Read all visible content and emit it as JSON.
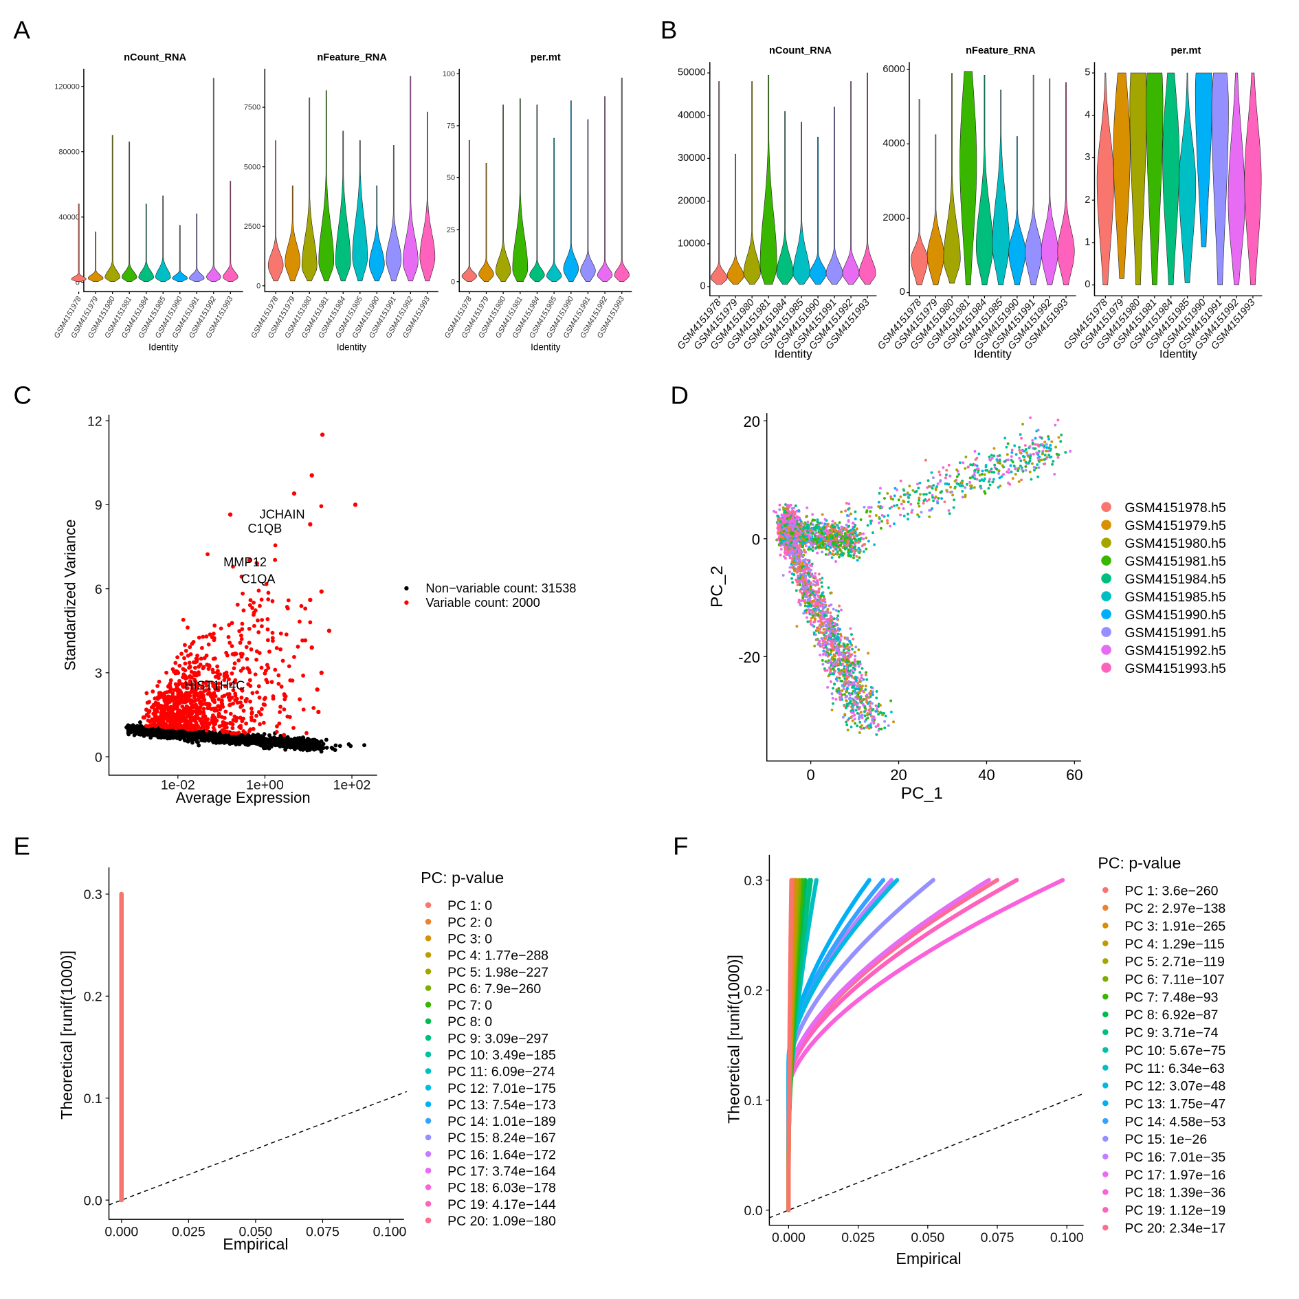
{
  "panel_labels": [
    "A",
    "B",
    "C",
    "D",
    "E",
    "F"
  ],
  "samples": [
    "GSM4151978",
    "GSM4151979",
    "GSM4151980",
    "GSM4151981",
    "GSM4151984",
    "GSM4151985",
    "GSM4151990",
    "GSM4151991",
    "GSM4151992",
    "GSM4151993"
  ],
  "sample_colors": [
    "#F8766D",
    "#D89000",
    "#A3A500",
    "#39B600",
    "#00BF7D",
    "#00BFC4",
    "#00B0F6",
    "#9590FF",
    "#E76BF3",
    "#FF62BC"
  ],
  "chart_data": [
    {
      "id": "A",
      "type": "violin",
      "xlabel": "Identity",
      "facets": [
        {
          "title": "nCount_RNA",
          "ticks": [
            0,
            40000,
            80000,
            120000
          ],
          "ylim": [
            -4000,
            133000
          ],
          "min": [
            500,
            500,
            500,
            500,
            500,
            500,
            500,
            500,
            500,
            500
          ],
          "mode": [
            2000,
            2500,
            3000,
            3000,
            3000,
            3000,
            2500,
            2500,
            3000,
            3000
          ],
          "spread": [
            1500,
            2000,
            4000,
            3500,
            4000,
            5000,
            2000,
            2500,
            3000,
            3500
          ],
          "max": [
            48000,
            31000,
            90000,
            86000,
            48000,
            53000,
            35000,
            42000,
            125000,
            62000
          ]
        },
        {
          "title": "nFeature_RNA",
          "ticks": [
            0,
            2500,
            5000,
            7500
          ],
          "ylim": [
            -300,
            9000
          ],
          "min": [
            200,
            200,
            200,
            200,
            200,
            200,
            200,
            200,
            200,
            200
          ],
          "mode": [
            850,
            1000,
            800,
            1000,
            1000,
            1200,
            900,
            1100,
            1000,
            1200
          ],
          "spread": [
            500,
            700,
            1200,
            1500,
            1500,
            1500,
            700,
            800,
            1000,
            1000
          ],
          "max": [
            6100,
            4200,
            7900,
            8200,
            6500,
            6100,
            4200,
            5900,
            8800,
            7300
          ]
        },
        {
          "title": "per.mt",
          "ticks": [
            0,
            25,
            50,
            75,
            100
          ],
          "ylim": [
            -4,
            102
          ],
          "min": [
            0,
            0,
            0,
            0,
            0,
            0,
            0,
            0,
            0,
            0
          ],
          "mode": [
            2.5,
            3.5,
            5,
            6,
            3,
            2.5,
            6,
            5,
            3,
            3
          ],
          "spread": [
            2,
            3,
            6,
            15,
            3,
            3,
            5,
            4,
            3,
            3
          ],
          "max": [
            68,
            57,
            85,
            88,
            85,
            69,
            87,
            78,
            89,
            98
          ]
        }
      ]
    },
    {
      "id": "B",
      "type": "violin",
      "xlabel": "Identity",
      "facets": [
        {
          "title": "nCount_RNA",
          "ticks": [
            0,
            10000,
            20000,
            30000,
            40000,
            50000
          ],
          "ylim": [
            -2000,
            52500
          ],
          "min": [
            500,
            500,
            500,
            500,
            500,
            500,
            500,
            500,
            500,
            500
          ],
          "mode": [
            2000,
            2500,
            3000,
            5000,
            3000,
            3000,
            3000,
            3000,
            3000,
            3000
          ],
          "spread": [
            1500,
            2000,
            4000,
            12000,
            4000,
            5000,
            2000,
            2500,
            2500,
            3000
          ],
          "max": [
            48000,
            31000,
            48000,
            49500,
            41000,
            38500,
            35000,
            42000,
            48000,
            50000
          ]
        },
        {
          "title": "nFeature_RNA",
          "ticks": [
            0,
            2000,
            4000,
            6000
          ],
          "ylim": [
            -100,
            6200
          ],
          "min": [
            200,
            200,
            250,
            200,
            200,
            200,
            200,
            200,
            200,
            200
          ],
          "mode": [
            900,
            1000,
            900,
            3500,
            1200,
            1300,
            1100,
            1100,
            1100,
            1100
          ],
          "spread": [
            300,
            500,
            900,
            2000,
            1100,
            1200,
            450,
            500,
            600,
            600
          ],
          "max": [
            5200,
            4250,
            5900,
            5950,
            5850,
            5450,
            4200,
            5850,
            5750,
            5650
          ]
        },
        {
          "title": "per.mt",
          "ticks": [
            0,
            1,
            2,
            3,
            4,
            5
          ],
          "ylim": [
            -0.1,
            5.3
          ],
          "min": [
            0,
            0.15,
            0,
            0,
            0,
            0.05,
            0.9,
            0,
            0,
            0
          ],
          "mode": [
            2.5,
            3.2,
            4.3,
            4.3,
            3.0,
            2.4,
            4.6,
            4.2,
            2.0,
            2.5
          ],
          "spread": [
            1.0,
            1.5,
            1.5,
            1.5,
            1.5,
            1.0,
            1.0,
            1.2,
            1.5,
            1.3
          ],
          "max": [
            5,
            5,
            5,
            5,
            5,
            5,
            5,
            5,
            5,
            5
          ]
        }
      ]
    },
    {
      "id": "C",
      "type": "scatter",
      "xlabel": "Average Expression",
      "ylabel": "Standardized Variance",
      "x_scale": "log10",
      "xlim": [
        0.00026,
        380
      ],
      "ylim": [
        -0.5,
        12.2
      ],
      "xticks": [
        "1e-02",
        "1e+00",
        "1e+02"
      ],
      "xtick_values": [
        0.01,
        1,
        100
      ],
      "yticks": [
        0,
        3,
        6,
        9,
        12
      ],
      "legend": [
        {
          "label": "Non−variable count: 31538",
          "color": "#000000"
        },
        {
          "label": "Variable count: 2000",
          "color": "#FF0000"
        }
      ],
      "labeled_genes": [
        {
          "gene": "JCHAIN",
          "x": 2.5,
          "y": 8.5
        },
        {
          "gene": "C1QB",
          "x": 1.0,
          "y": 8.0
        },
        {
          "gene": "MMP12",
          "x": 0.35,
          "y": 6.8
        },
        {
          "gene": "C1QA",
          "x": 0.7,
          "y": 6.2
        },
        {
          "gene": "HIST1H4C",
          "x": 0.07,
          "y": 2.4
        }
      ],
      "top_variable_points": [
        [
          21,
          11.5
        ],
        [
          12,
          10.05
        ],
        [
          4.7,
          9.4
        ],
        [
          120,
          9.0
        ],
        [
          0.16,
          8.65
        ],
        [
          11,
          8.3
        ],
        [
          20,
          5.9
        ],
        [
          11,
          5.6
        ],
        [
          30,
          4.5
        ],
        [
          12,
          3.9
        ],
        [
          20,
          3.0
        ],
        [
          16,
          2.4
        ],
        [
          17,
          1.6
        ]
      ]
    },
    {
      "id": "D",
      "type": "scatter",
      "xlabel": "PC_1",
      "ylabel": "PC_2",
      "xlim": [
        -10,
        61.5
      ],
      "ylim": [
        -37.7,
        21.3
      ],
      "xticks": [
        0,
        20,
        40,
        60
      ],
      "yticks": [
        -20,
        0,
        20
      ],
      "legend": [
        "GSM4151978.h5",
        "GSM4151979.h5",
        "GSM4151980.h5",
        "GSM4151981.h5",
        "GSM4151984.h5",
        "GSM4151985.h5",
        "GSM4151990.h5",
        "GSM4151991.h5",
        "GSM4151992.h5",
        "GSM4151993.h5"
      ]
    },
    {
      "id": "E",
      "type": "scatter",
      "title_legend": "PC: p-value",
      "xlabel": "Empirical",
      "ylabel": "Theoretical [runif(1000)]",
      "xlim": [
        -0.0047,
        0.1064
      ],
      "ylim": [
        -0.019,
        0.327
      ],
      "xticks": [
        "0.000",
        "0.025",
        "0.050",
        "0.075",
        "0.100"
      ],
      "yticks": [
        "0.0",
        "0.1",
        "0.2",
        "0.3"
      ],
      "legend": [
        "PC 1: 0",
        "PC 2: 0",
        "PC 3: 0",
        "PC 4: 1.77e−288",
        "PC 5: 1.98e−227",
        "PC 6: 7.9e−260",
        "PC 7: 0",
        "PC 8: 0",
        "PC 9: 3.09e−297",
        "PC 10: 3.49e−185",
        "PC 11: 6.09e−274",
        "PC 12: 7.01e−175",
        "PC 13: 7.54e−173",
        "PC 14: 1.01e−189",
        "PC 15: 8.24e−167",
        "PC 16: 1.64e−172",
        "PC 17: 3.74e−164",
        "PC 18: 6.03e−178",
        "PC 19: 4.17e−144",
        "PC 20: 1.09e−180"
      ],
      "max_empirical": [
        0,
        0,
        0,
        0,
        0,
        0,
        0,
        0,
        0,
        0,
        0,
        0,
        0,
        0,
        0,
        0,
        0,
        0,
        0,
        0
      ]
    },
    {
      "id": "F",
      "type": "scatter",
      "title_legend": "PC: p-value",
      "xlabel": "Empirical",
      "ylabel": "Theoretical [runif(1000)]",
      "xlim": [
        -0.007,
        0.106
      ],
      "ylim": [
        -0.014,
        0.322
      ],
      "xticks": [
        "0.000",
        "0.025",
        "0.050",
        "0.075",
        "0.100"
      ],
      "yticks": [
        "0.0",
        "0.1",
        "0.2",
        "0.3"
      ],
      "legend": [
        "PC 1: 3.6e−260",
        "PC 2: 2.97e−138",
        "PC 3: 1.91e−265",
        "PC 4: 1.29e−115",
        "PC 5: 2.71e−119",
        "PC 6: 7.11e−107",
        "PC 7: 7.48e−93",
        "PC 8: 6.92e−87",
        "PC 9: 3.71e−74",
        "PC 10: 5.67e−75",
        "PC 11: 6.34e−63",
        "PC 12: 3.07e−48",
        "PC 13: 1.75e−47",
        "PC 14: 4.58e−53",
        "PC 15: 1e−26",
        "PC 16: 7.01e−35",
        "PC 17: 1.97e−16",
        "PC 18: 1.39e−36",
        "PC 19: 1.12e−19",
        "PC 20: 2.34e−17"
      ],
      "max_empirical": [
        0.001,
        0.0015,
        0.002,
        0.003,
        0.0025,
        0.004,
        0.005,
        0.006,
        0.008,
        0.0075,
        0.01,
        0.039,
        0.029,
        0.034,
        0.052,
        0.037,
        0.072,
        0.0985,
        0.082,
        0.075
      ]
    }
  ],
  "pc_colors": [
    "#F8766D",
    "#EA8331",
    "#D89000",
    "#C09B00",
    "#A3A500",
    "#7CAE00",
    "#39B600",
    "#00BB4E",
    "#00BF7D",
    "#00C1A3",
    "#00BFC4",
    "#00BAE0",
    "#00B0F6",
    "#35A2FF",
    "#9590FF",
    "#C77CFF",
    "#E76BF3",
    "#FA62DB",
    "#FF62BC",
    "#FF6C91"
  ]
}
